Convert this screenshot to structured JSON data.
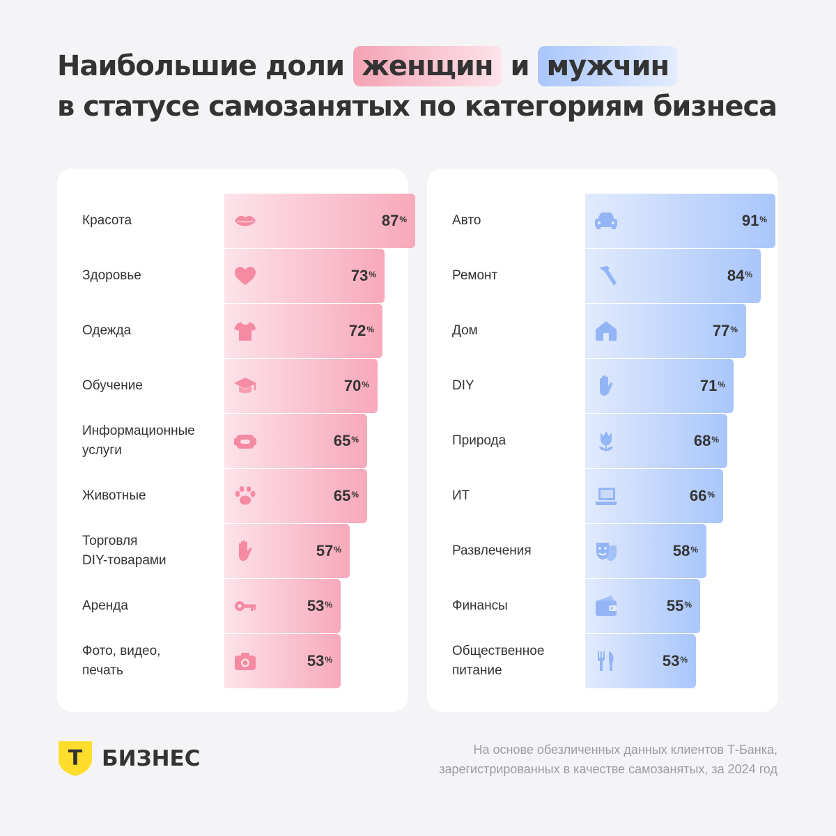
{
  "title": {
    "line1_before": "Наибольшие доли ",
    "women_word": "женщин",
    "connector": " и ",
    "men_word": "мужчин",
    "line2": "в статусе самозанятых по категориям бизнеса"
  },
  "colors": {
    "women_accent": "#f7a9bb",
    "men_accent": "#a9c6fb",
    "logo_yellow": "#ffdd2d"
  },
  "chart_data": [
    {
      "type": "bar",
      "orientation": "horizontal",
      "unit": "%",
      "categories": [
        [
          "Красота"
        ],
        [
          "Здоровье"
        ],
        [
          "Одежда"
        ],
        [
          "Обучение"
        ],
        [
          "Информационные",
          "услуги"
        ],
        [
          "Животные"
        ],
        [
          "Торговля",
          "DIY-товарами"
        ],
        [
          "Аренда"
        ],
        [
          "Фото, видео,",
          "печать"
        ]
      ],
      "values": [
        87,
        73,
        72,
        70,
        65,
        65,
        57,
        53,
        53
      ],
      "icons": [
        "lips-icon",
        "heart-icon",
        "tshirt-icon",
        "graduation-cap-icon",
        "headset-icon",
        "paw-icon",
        "hand-icon",
        "key-icon",
        "camera-icon"
      ],
      "xlim": [
        0,
        100
      ]
    },
    {
      "type": "bar",
      "orientation": "horizontal",
      "unit": "%",
      "categories": [
        [
          "Авто"
        ],
        [
          "Ремонт"
        ],
        [
          "Дом"
        ],
        [
          "DIY"
        ],
        [
          "Природа"
        ],
        [
          "ИТ"
        ],
        [
          "Развлечения"
        ],
        [
          "Финансы"
        ],
        [
          "Общественное",
          "питание"
        ]
      ],
      "values": [
        91,
        84,
        77,
        71,
        68,
        66,
        58,
        55,
        53
      ],
      "icons": [
        "car-icon",
        "hammer-icon",
        "house-icon",
        "hand-icon",
        "tulip-icon",
        "laptop-icon",
        "theater-mask-icon",
        "wallet-icon",
        "fork-knife-icon"
      ],
      "xlim": [
        0,
        100
      ]
    }
  ],
  "logo": {
    "text": "БИЗНЕС",
    "mark": "Т"
  },
  "footnote": {
    "line1": "На основе обезличенных данных клиентов Т-Банка,",
    "line2": "зарегистрированных в качестве самозанятых, за 2024 год"
  }
}
